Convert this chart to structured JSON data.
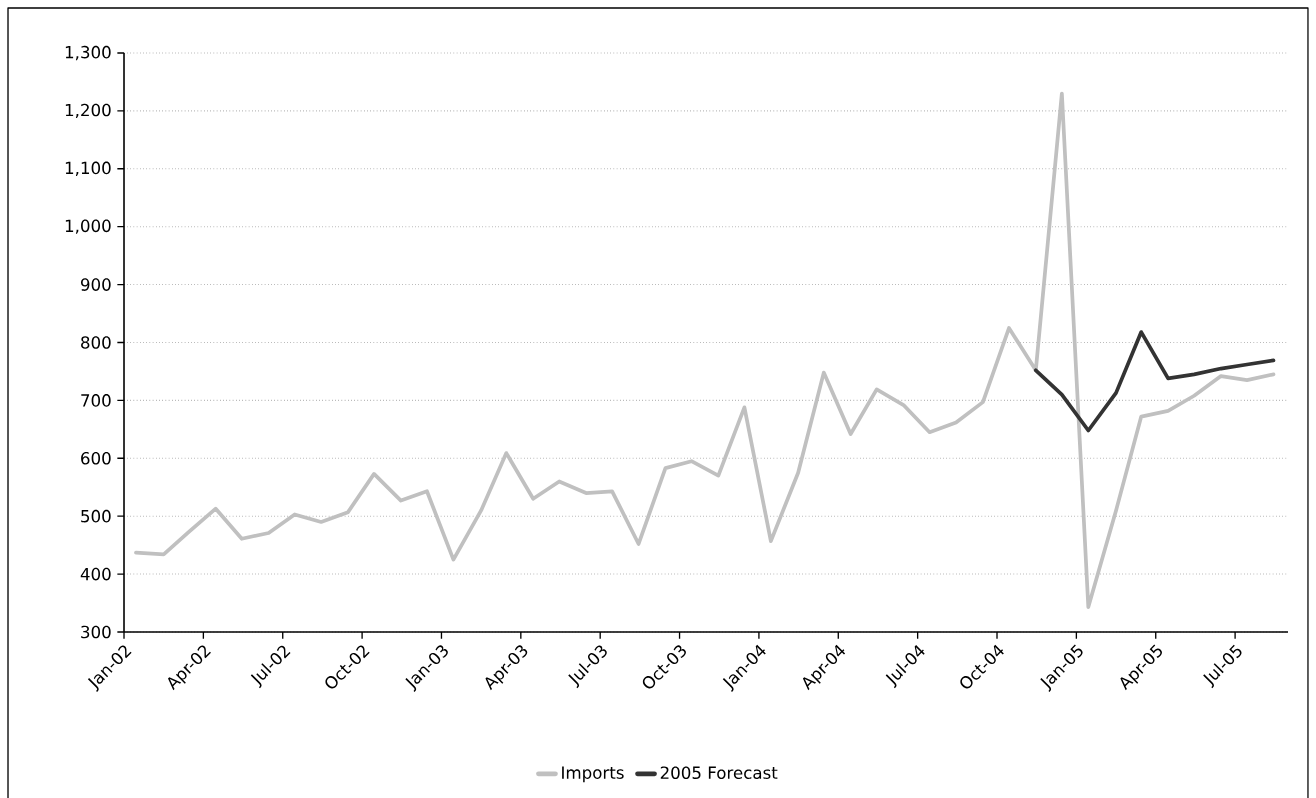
{
  "chart_data": {
    "type": "line",
    "x": [
      "2002-01-15",
      "2002-02-15",
      "2002-03-15",
      "2002-04-15",
      "2002-05-15",
      "2002-06-15",
      "2002-07-15",
      "2002-08-15",
      "2002-09-15",
      "2002-10-15",
      "2002-11-15",
      "2002-12-15",
      "2003-01-15",
      "2003-02-15",
      "2003-03-15",
      "2003-04-15",
      "2003-05-15",
      "2003-06-15",
      "2003-07-15",
      "2003-08-15",
      "2003-09-15",
      "2003-10-15",
      "2003-11-15",
      "2003-12-15",
      "2004-01-15",
      "2004-02-15",
      "2004-03-15",
      "2004-04-15",
      "2004-05-15",
      "2004-06-15",
      "2004-07-15",
      "2004-08-15",
      "2004-09-15",
      "2004-10-15",
      "2004-11-15",
      "2004-12-15",
      "2005-01-15",
      "2005-02-15",
      "2005-03-15",
      "2005-04-15",
      "2005-05-15",
      "2005-06-15",
      "2005-07-15",
      "2005-08-15"
    ],
    "series": [
      {
        "name": "Imports",
        "color": "#c0c0c0",
        "values": [
          437,
          434,
          473,
          513,
          461,
          471,
          503,
          490,
          507,
          573,
          527,
          543,
          425,
          510,
          609,
          530,
          560,
          540,
          543,
          452,
          583,
          595,
          570,
          688,
          457,
          575,
          748,
          642,
          719,
          692,
          645,
          662,
          697,
          825,
          752,
          1230,
          343,
          510,
          672,
          682,
          708,
          742,
          735,
          745
        ]
      },
      {
        "name": "2005 Forecast",
        "color": "#333333",
        "x": [
          "2004-11-15",
          "2004-12-15",
          "2005-01-15",
          "2005-02-15",
          "2005-03-15",
          "2005-04-15",
          "2005-05-15",
          "2005-06-15",
          "2005-07-15",
          "2005-08-15"
        ],
        "values": [
          752,
          710,
          648,
          713,
          818,
          738,
          745,
          755,
          762,
          769
        ]
      }
    ],
    "xlim": [
      "2002-01",
      "2005-09"
    ],
    "xticks": [
      {
        "value": "2002-01",
        "label": "Jan-02"
      },
      {
        "value": "2002-04",
        "label": "Apr-02"
      },
      {
        "value": "2002-07",
        "label": "Jul-02"
      },
      {
        "value": "2002-10",
        "label": "Oct-02"
      },
      {
        "value": "2003-01",
        "label": "Jan-03"
      },
      {
        "value": "2003-04",
        "label": "Apr-03"
      },
      {
        "value": "2003-07",
        "label": "Jul-03"
      },
      {
        "value": "2003-10",
        "label": "Oct-03"
      },
      {
        "value": "2004-01",
        "label": "Jan-04"
      },
      {
        "value": "2004-04",
        "label": "Apr-04"
      },
      {
        "value": "2004-07",
        "label": "Jul-04"
      },
      {
        "value": "2004-10",
        "label": "Oct-04"
      },
      {
        "value": "2005-01",
        "label": "Jan-05"
      },
      {
        "value": "2005-04",
        "label": "Apr-05"
      },
      {
        "value": "2005-07",
        "label": "Jul-05"
      }
    ],
    "ylim": [
      300,
      1300
    ],
    "yticks": [
      300,
      400,
      500,
      600,
      700,
      800,
      900,
      {
        "value": 1000,
        "label": "1,000"
      },
      {
        "value": 1100,
        "label": "1,100"
      },
      {
        "value": 1200,
        "label": "1,200"
      },
      {
        "value": 1300,
        "label": "1,300"
      }
    ],
    "grid": "y",
    "legend": "bottom"
  }
}
